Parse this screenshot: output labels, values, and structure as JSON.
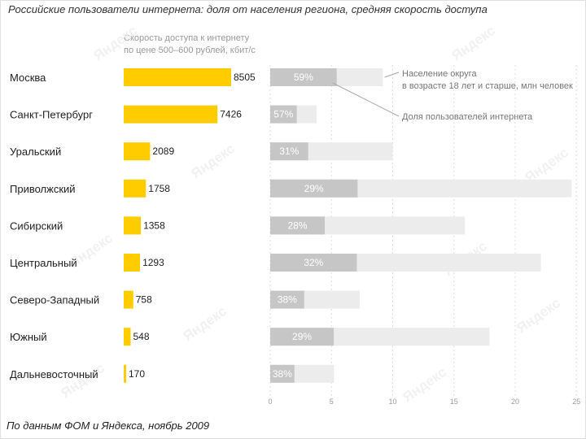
{
  "title": "Российские пользователи интернета: доля от населения региона, средняя скорость доступа",
  "source": "По данным ФОМ и Яндекса, ноябрь 2009",
  "watermark": "Яндекс",
  "colors": {
    "speed_bar": "#ffcc00",
    "share_bar": "#c6c6c6",
    "population_bar": "#ececec",
    "share_label": "#ffffff"
  },
  "chart_data": {
    "type": "bar",
    "title": "Российские пользователи интернета: доля от населения региона, средняя скорость доступа",
    "categories": [
      "Москва",
      "Санкт-Петербург",
      "Уральский",
      "Приволжский",
      "Сибирский",
      "Центральный",
      "Северо-Западный",
      "Южный",
      "Дальневосточный"
    ],
    "speed": {
      "label_line1": "Скорость доступа к интернету",
      "label_line2": "по цене 500–600 рублей, кбит/с",
      "values": [
        8505,
        7426,
        2089,
        1758,
        1358,
        1293,
        758,
        548,
        170
      ],
      "max": 8505
    },
    "population": {
      "legend_line1": "Население округа",
      "legend_line2": "в возрасте 18 лет и старше, млн человек",
      "values": [
        9.2,
        3.8,
        10.0,
        24.6,
        15.9,
        22.1,
        7.3,
        17.9,
        5.2
      ],
      "xlim": [
        0,
        25
      ],
      "ticks": [
        "0",
        "5",
        "10",
        "15",
        "20",
        "25"
      ]
    },
    "share": {
      "legend": "Доля пользователей интернета",
      "values": [
        59,
        57,
        31,
        29,
        28,
        32,
        38,
        29,
        38
      ],
      "labels": [
        "59%",
        "57%",
        "31%",
        "29%",
        "28%",
        "32%",
        "38%",
        "29%",
        "38%"
      ]
    }
  }
}
